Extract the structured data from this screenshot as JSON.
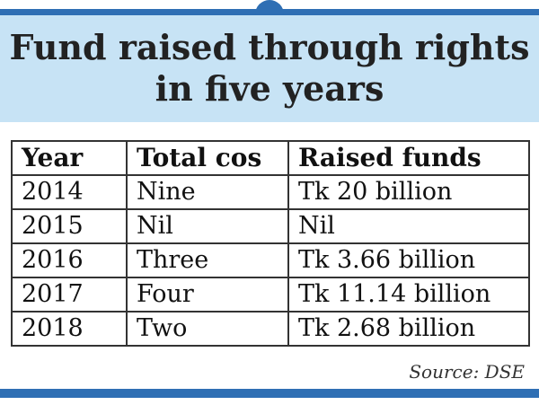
{
  "title_line1": "Fund raised through rights",
  "title_line2": "in five years",
  "source": "Source: DSE",
  "colors": {
    "accent": "#2f6fb4",
    "title_band": "#c7e3f5"
  },
  "chart_data": {
    "type": "table",
    "title": "Fund raised through rights in five years",
    "columns": [
      "Year",
      "Total cos",
      "Raised funds"
    ],
    "rows": [
      [
        "2014",
        "Nine",
        "Tk 20 billion"
      ],
      [
        "2015",
        "Nil",
        "Nil"
      ],
      [
        "2016",
        "Three",
        "Tk 3.66 billion"
      ],
      [
        "2017",
        "Four",
        "Tk 11.14 billion"
      ],
      [
        "2018",
        "Two",
        "Tk 2.68 billion"
      ]
    ]
  }
}
